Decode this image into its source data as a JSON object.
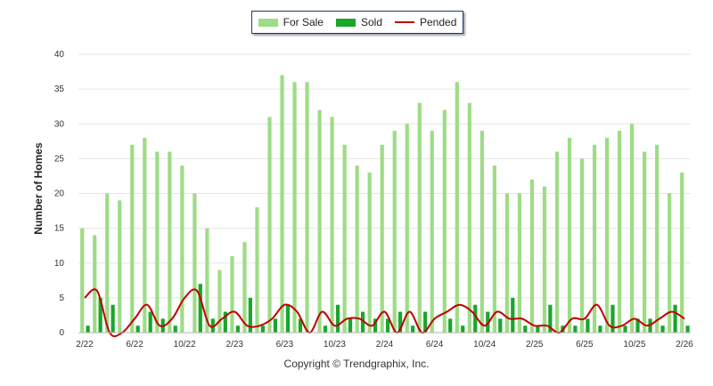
{
  "chart_data": {
    "type": "bar",
    "ylabel": "Number of Homes",
    "ylim": [
      0,
      40
    ],
    "yticks": [
      0,
      5,
      10,
      15,
      20,
      25,
      30,
      35,
      40
    ],
    "grid": true,
    "legend_position": "top-center",
    "copyright": "Copyright © Trendgraphix, Inc.",
    "x_tick_labels": [
      "2/22",
      "6/22",
      "10/22",
      "2/23",
      "6/23",
      "10/23",
      "2/24",
      "6/24",
      "10/24",
      "2/25",
      "6/25",
      "10/25",
      "2/26"
    ],
    "x_tick_label_every": 4,
    "categories": [
      "2/22",
      "3/22",
      "4/22",
      "5/22",
      "6/22",
      "7/22",
      "8/22",
      "9/22",
      "10/22",
      "11/22",
      "12/22",
      "1/23",
      "2/23",
      "3/23",
      "4/23",
      "5/23",
      "6/23",
      "7/23",
      "8/23",
      "9/23",
      "10/23",
      "11/23",
      "12/23",
      "1/24",
      "2/24",
      "3/24",
      "4/24",
      "5/24",
      "6/24",
      "7/24",
      "8/24",
      "9/24",
      "10/24",
      "11/24",
      "12/24",
      "1/25",
      "2/25",
      "3/25",
      "4/25",
      "5/25",
      "6/25",
      "7/25",
      "8/25",
      "9/25",
      "10/25",
      "11/25",
      "12/25",
      "1/26",
      "2/26"
    ],
    "series": [
      {
        "name": "For Sale",
        "type": "bar",
        "color": "#9edc86",
        "values": [
          15,
          14,
          20,
          19,
          27,
          28,
          26,
          26,
          24,
          20,
          15,
          9,
          11,
          13,
          18,
          31,
          37,
          36,
          36,
          32,
          31,
          27,
          24,
          23,
          27,
          29,
          30,
          33,
          29,
          32,
          36,
          33,
          29,
          24,
          20,
          20,
          22,
          21,
          26,
          28,
          25,
          27,
          28,
          29,
          30,
          26,
          27,
          20,
          23
        ]
      },
      {
        "name": "Sold",
        "type": "bar",
        "color": "#1aa52b",
        "values": [
          1,
          5,
          4,
          0,
          1,
          3,
          2,
          1,
          0,
          7,
          2,
          3,
          1,
          5,
          1,
          2,
          4,
          2,
          0,
          1,
          4,
          2,
          3,
          2,
          2,
          3,
          1,
          3,
          0,
          2,
          1,
          4,
          3,
          2,
          5,
          1,
          1,
          4,
          1,
          1,
          2,
          1,
          4,
          1,
          2,
          2,
          1,
          4,
          1
        ]
      },
      {
        "name": "Pended",
        "type": "line",
        "color": "#c00000",
        "values": [
          5,
          6,
          0,
          0,
          2,
          4,
          1,
          2,
          5,
          6,
          1,
          2,
          3,
          1,
          1,
          2,
          4,
          3,
          0,
          3,
          1,
          2,
          2,
          1,
          3,
          0,
          3,
          0,
          2,
          3,
          4,
          3,
          1,
          3,
          2,
          2,
          1,
          1,
          0,
          2,
          2,
          4,
          1,
          1,
          2,
          1,
          2,
          3,
          2
        ]
      }
    ]
  },
  "legend": {
    "items": [
      {
        "label": "For Sale",
        "color": "#9edc86",
        "kind": "box"
      },
      {
        "label": "Sold",
        "color": "#1aa52b",
        "kind": "box"
      },
      {
        "label": "Pended",
        "color": "#c00000",
        "kind": "line"
      }
    ]
  }
}
